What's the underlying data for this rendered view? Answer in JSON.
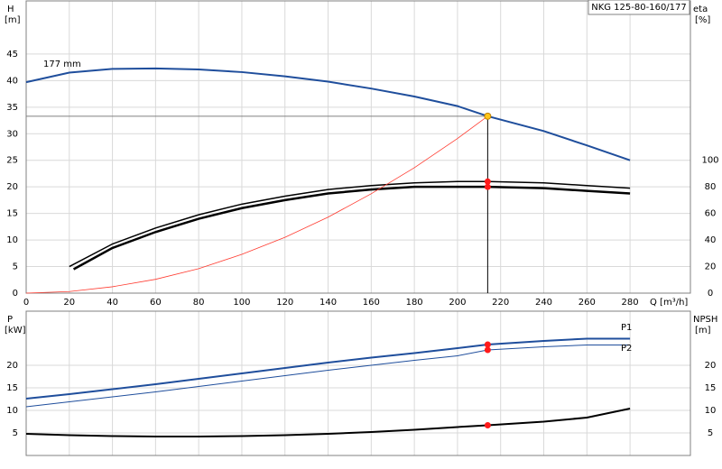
{
  "chart_data": [
    {
      "type": "line",
      "title": "NKG 125-80-160/177",
      "y_label": "H",
      "y_unit": "[m]",
      "y2_label": "eta",
      "y2_unit": "[%]",
      "x_label": "Q [m³/h]",
      "xlim": [
        0,
        308
      ],
      "ylim": [
        0,
        55
      ],
      "y2lim": [
        0,
        220
      ],
      "xticks": [
        0,
        20,
        40,
        60,
        80,
        100,
        120,
        140,
        160,
        180,
        200,
        220,
        240,
        260,
        280
      ],
      "yticks": [
        0,
        5,
        10,
        15,
        20,
        25,
        30,
        35,
        40,
        45
      ],
      "y2ticks": [
        0,
        20,
        40,
        60,
        80,
        100
      ],
      "grid": true,
      "series": [
        {
          "name": "177 mm",
          "color": "#1f4e9c",
          "line_width": 2,
          "x": [
            0,
            20,
            40,
            60,
            80,
            100,
            120,
            140,
            160,
            180,
            200,
            214,
            240,
            260,
            280
          ],
          "values": [
            39.7,
            41.5,
            42.2,
            42.3,
            42.1,
            41.6,
            40.8,
            39.8,
            38.5,
            37,
            35.2,
            33.3,
            30.5,
            27.8,
            25
          ]
        },
        {
          "color": "#000000",
          "line_width": 1.5,
          "axis": "y2",
          "x": [
            20,
            40,
            60,
            80,
            100,
            120,
            140,
            160,
            180,
            200,
            214,
            240,
            260,
            280
          ],
          "values": [
            20,
            37,
            49,
            59,
            67,
            73,
            78,
            81,
            83,
            84,
            84,
            83,
            81,
            79
          ]
        },
        {
          "color": "#000000",
          "line_width": 2.5,
          "axis": "y2",
          "x": [
            22,
            40,
            60,
            80,
            100,
            120,
            140,
            160,
            180,
            200,
            214,
            240,
            260,
            280
          ],
          "values": [
            18,
            34,
            46,
            56,
            64,
            70,
            75,
            78,
            80,
            80,
            80,
            79,
            77,
            75
          ]
        },
        {
          "color": "#ff3b30",
          "line_width": 0.8,
          "x": [
            0,
            20,
            40,
            60,
            80,
            100,
            120,
            140,
            160,
            180,
            200,
            214
          ],
          "values": [
            0,
            0.3,
            1.2,
            2.6,
            4.6,
            7.3,
            10.5,
            14.3,
            18.7,
            23.6,
            29.1,
            33.3
          ]
        }
      ],
      "markers": [
        {
          "x": 214,
          "value": 33.3,
          "color": "#ffc61a",
          "guides": true
        },
        {
          "x": 214,
          "value": 84,
          "color": "#ff1a1a",
          "axis": "y2"
        },
        {
          "x": 214,
          "value": 80,
          "color": "#ff1a1a",
          "axis": "y2"
        }
      ]
    },
    {
      "type": "line",
      "y_label": "P",
      "y_unit": "[kW]",
      "y2_label": "NPSH",
      "y2_unit": "[m]",
      "xlim": [
        0,
        308
      ],
      "ylim": [
        0,
        32
      ],
      "y2lim": [
        0,
        32
      ],
      "yticks": [
        5,
        10,
        15,
        20
      ],
      "y2ticks": [
        5,
        10,
        15,
        20
      ],
      "grid": true,
      "series": [
        {
          "name": "P1",
          "color": "#1f4e9c",
          "line_width": 2,
          "x": [
            0,
            20,
            40,
            60,
            80,
            100,
            120,
            140,
            160,
            180,
            200,
            214,
            240,
            260,
            280
          ],
          "values": [
            12.6,
            13.6,
            14.7,
            15.8,
            17.0,
            18.2,
            19.4,
            20.6,
            21.7,
            22.7,
            23.8,
            24.6,
            25.4,
            25.9,
            25.9
          ]
        },
        {
          "name": "P2",
          "color": "#1f4e9c",
          "line_width": 1,
          "x": [
            0,
            20,
            40,
            60,
            80,
            100,
            120,
            140,
            160,
            180,
            200,
            214,
            240,
            260,
            280
          ],
          "values": [
            10.8,
            11.9,
            13.0,
            14.1,
            15.3,
            16.5,
            17.7,
            18.9,
            20.0,
            21.1,
            22.1,
            23.4,
            24.1,
            24.5,
            24.5
          ]
        },
        {
          "color": "#000000",
          "line_width": 2,
          "axis": "y2",
          "x": [
            0,
            20,
            40,
            60,
            80,
            100,
            120,
            140,
            160,
            180,
            200,
            214,
            240,
            260,
            280
          ],
          "values": [
            4.8,
            4.5,
            4.3,
            4.2,
            4.2,
            4.3,
            4.5,
            4.8,
            5.2,
            5.7,
            6.3,
            6.7,
            7.5,
            8.4,
            10.4
          ]
        }
      ],
      "markers": [
        {
          "x": 214,
          "value": 24.6,
          "color": "#ff1a1a"
        },
        {
          "x": 214,
          "value": 23.4,
          "color": "#ff1a1a"
        },
        {
          "x": 214,
          "value": 6.7,
          "color": "#ff1a1a",
          "axis": "y2"
        }
      ]
    }
  ]
}
